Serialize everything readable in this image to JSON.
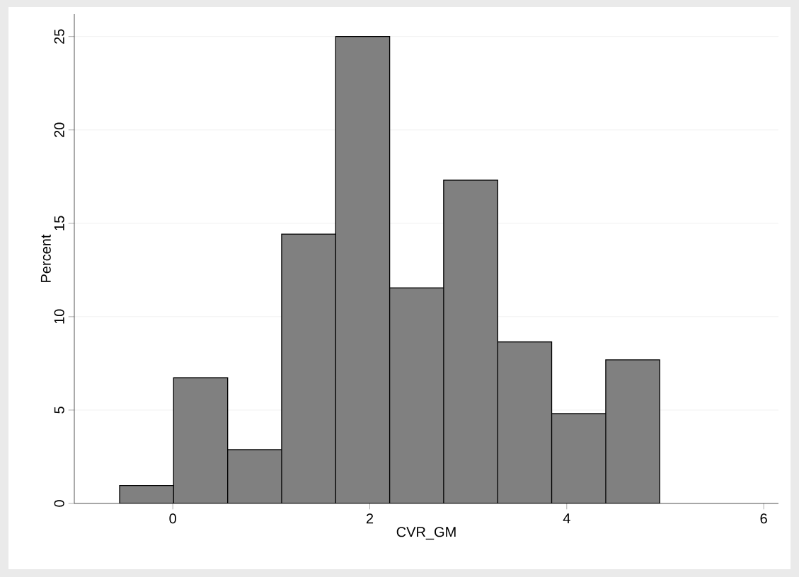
{
  "chart_data": {
    "type": "histogram",
    "xlabel": "CVR_GM",
    "ylabel": "Percent",
    "bins": [
      -0.54,
      0.008,
      0.557,
      1.105,
      1.654,
      2.202,
      2.75,
      3.299,
      3.847,
      4.396,
      4.944
    ],
    "values": [
      0.96,
      6.73,
      2.88,
      14.42,
      25,
      11.54,
      17.31,
      8.65,
      4.81,
      7.69
    ],
    "color": "#808080",
    "xlim": [
      -1,
      6.15
    ],
    "ylim": [
      0,
      26.2
    ],
    "xticks": [
      0,
      2,
      4,
      6
    ],
    "yticks": [
      0,
      5,
      10,
      15,
      20,
      25
    ],
    "grid": "y"
  }
}
